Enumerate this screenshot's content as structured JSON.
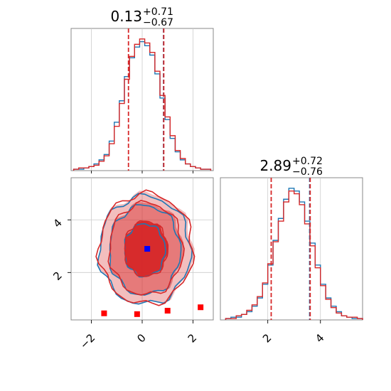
{
  "chart_data": [
    {
      "type": "histogram",
      "panel": "marginal-x",
      "title": {
        "median": "0.13",
        "plus": "+0.71",
        "minus": "−0.67"
      },
      "xlim": [
        -2.8,
        2.8
      ],
      "grid": true,
      "series": [
        {
          "color": "#1f77b4",
          "bin_centers": [
            -2.6,
            -2.4,
            -2.2,
            -2.0,
            -1.8,
            -1.6,
            -1.4,
            -1.2,
            -1.0,
            -0.8,
            -0.6,
            -0.4,
            -0.2,
            0.0,
            0.2,
            0.4,
            0.6,
            0.8,
            1.0,
            1.2,
            1.4,
            1.6,
            1.8,
            2.0,
            2.2,
            2.4,
            2.6
          ],
          "counts": [
            1,
            1,
            2,
            3,
            5,
            8,
            12,
            22,
            36,
            52,
            70,
            84,
            92,
            96,
            93,
            86,
            72,
            54,
            38,
            24,
            14,
            8,
            5,
            3,
            2,
            1,
            1
          ]
        },
        {
          "color": "#d62728",
          "bin_centers": [
            -2.6,
            -2.4,
            -2.2,
            -2.0,
            -1.8,
            -1.6,
            -1.4,
            -1.2,
            -1.0,
            -0.8,
            -0.6,
            -0.4,
            -0.2,
            0.0,
            0.2,
            0.4,
            0.6,
            0.8,
            1.0,
            1.2,
            1.4,
            1.6,
            1.8,
            2.0,
            2.2,
            2.4,
            2.6
          ],
          "counts": [
            1,
            2,
            2,
            3,
            4,
            7,
            11,
            20,
            33,
            50,
            68,
            85,
            94,
            98,
            95,
            88,
            74,
            56,
            40,
            26,
            15,
            9,
            5,
            3,
            2,
            1,
            1
          ]
        }
      ],
      "quantile_lines": [
        {
          "x": -0.54,
          "color": "#d62728"
        },
        {
          "x": 0.84,
          "color": "#1f77b4"
        },
        {
          "x": 0.85,
          "color": "#d62728"
        }
      ]
    },
    {
      "type": "contour",
      "panel": "joint",
      "xlim": [
        -2.8,
        2.8
      ],
      "ylim": [
        0.2,
        5.6
      ],
      "xticks": [
        -2,
        0,
        2
      ],
      "yticks": [
        2,
        4
      ],
      "grid": true,
      "series": [
        {
          "color": "#1f77b4",
          "center": [
            0.1,
            2.85
          ],
          "radii_x": [
            0.8,
            1.4,
            1.8
          ],
          "radii_y": [
            1.0,
            1.7,
            2.05
          ]
        },
        {
          "color": "#d62728",
          "center": [
            0.15,
            2.9
          ],
          "radii_x": [
            0.85,
            1.45,
            1.85
          ],
          "radii_y": [
            1.05,
            1.75,
            2.1
          ]
        }
      ],
      "markers": [
        {
          "x": 0.2,
          "y": 2.9,
          "color": "#0000ff"
        },
        {
          "x": -1.5,
          "y": 0.45,
          "color": "#ff0000"
        },
        {
          "x": -0.2,
          "y": 0.42,
          "color": "#ff0000"
        },
        {
          "x": 1.0,
          "y": 0.55,
          "color": "#ff0000"
        },
        {
          "x": 2.3,
          "y": 0.68,
          "color": "#ff0000"
        }
      ]
    },
    {
      "type": "histogram",
      "panel": "marginal-y",
      "title": {
        "median": "2.89",
        "plus": "+0.72",
        "minus": "−0.76"
      },
      "xlim": [
        0.2,
        5.6
      ],
      "xticks": [
        2,
        4
      ],
      "grid": true,
      "series": [
        {
          "color": "#1f77b4",
          "bin_centers": [
            0.5,
            0.7,
            0.9,
            1.1,
            1.3,
            1.5,
            1.7,
            1.9,
            2.1,
            2.3,
            2.5,
            2.7,
            2.9,
            3.1,
            3.3,
            3.5,
            3.7,
            3.9,
            4.1,
            4.3,
            4.5,
            4.7,
            4.9,
            5.1,
            5.3,
            5.5
          ],
          "counts": [
            1,
            2,
            2,
            4,
            6,
            10,
            16,
            26,
            40,
            58,
            74,
            88,
            96,
            94,
            86,
            72,
            56,
            40,
            26,
            16,
            10,
            6,
            3,
            2,
            1,
            1
          ]
        },
        {
          "color": "#d62728",
          "bin_centers": [
            0.5,
            0.7,
            0.9,
            1.1,
            1.3,
            1.5,
            1.7,
            1.9,
            2.1,
            2.3,
            2.5,
            2.7,
            2.9,
            3.1,
            3.3,
            3.5,
            3.7,
            3.9,
            4.1,
            4.3,
            4.5,
            4.7,
            4.9,
            5.1,
            5.3,
            5.5
          ],
          "counts": [
            1,
            1,
            3,
            4,
            7,
            11,
            17,
            27,
            41,
            57,
            72,
            86,
            94,
            92,
            84,
            70,
            54,
            38,
            25,
            15,
            9,
            5,
            3,
            2,
            2,
            1
          ]
        }
      ],
      "quantile_lines": [
        {
          "x": 2.13,
          "color": "#d62728"
        },
        {
          "x": 3.59,
          "color": "#1f77b4"
        },
        {
          "x": 3.61,
          "color": "#d62728"
        }
      ]
    }
  ]
}
